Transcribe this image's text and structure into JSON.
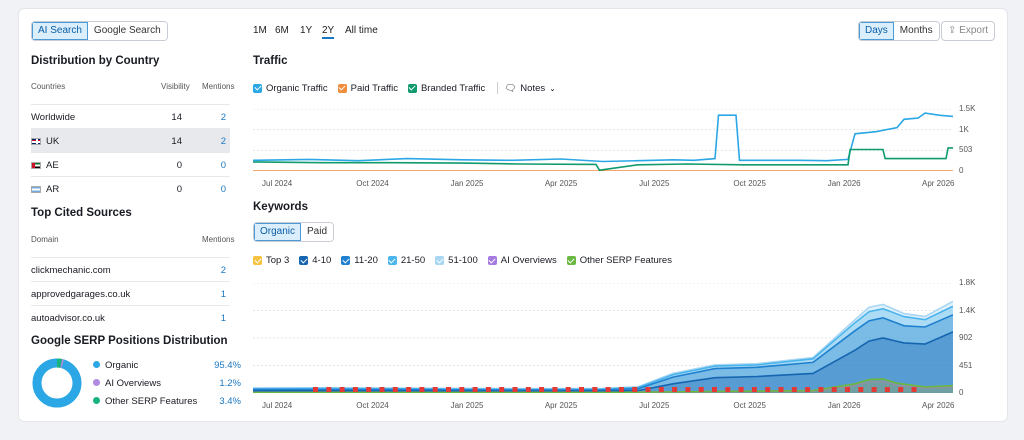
{
  "left": {
    "toggle": [
      {
        "label": "AI Search",
        "active": true
      },
      {
        "label": "Google Search",
        "active": false
      }
    ],
    "country_title": "Distribution by Country",
    "country_headers": {
      "countries": "Countries",
      "visibility": "Visibility",
      "mentions": "Mentions"
    },
    "countries": [
      {
        "name": "Worldwide",
        "visibility": "14",
        "mentions": "2"
      },
      {
        "name": "UK",
        "visibility": "14",
        "mentions": "2",
        "flag": "uk"
      },
      {
        "name": "AE",
        "visibility": "0",
        "mentions": "0",
        "flag": "ae"
      },
      {
        "name": "AR",
        "visibility": "0",
        "mentions": "0",
        "flag": "ar"
      }
    ],
    "sources_title": "Top Cited Sources",
    "sources_headers": {
      "domain": "Domain",
      "mentions": "Mentions"
    },
    "sources": [
      {
        "domain": "clickmechanic.com",
        "mentions": "2"
      },
      {
        "domain": "approvedgarages.co.uk",
        "mentions": "1"
      },
      {
        "domain": "autoadvisor.co.uk",
        "mentions": "1"
      }
    ],
    "serp_title": "Google SERP Positions Distribution",
    "serp": [
      {
        "label": "Organic",
        "value": "95.4%",
        "color": "#2ba7e6"
      },
      {
        "label": "AI Overviews",
        "value": "1.2%",
        "color": "#b08be0"
      },
      {
        "label": "Other SERP Features",
        "value": "3.4%",
        "color": "#19b37f"
      }
    ]
  },
  "periods": [
    {
      "label": "1M",
      "active": false
    },
    {
      "label": "6M",
      "active": false
    },
    {
      "label": "1Y",
      "active": false
    },
    {
      "label": "2Y",
      "active": true
    },
    {
      "label": "All time",
      "active": false
    }
  ],
  "granularity": [
    {
      "label": "Days",
      "active": true
    },
    {
      "label": "Months",
      "active": false
    }
  ],
  "export_label": "Export",
  "traffic": {
    "title": "Traffic",
    "legend": [
      {
        "label": "Organic Traffic",
        "color": "#2ba7e6"
      },
      {
        "label": "Paid Traffic",
        "color": "#f08c3a"
      },
      {
        "label": "Branded Traffic",
        "color": "#0f9b6e"
      }
    ],
    "notes_label": "Notes"
  },
  "keywords": {
    "title": "Keywords",
    "tabs": [
      {
        "label": "Organic",
        "active": true
      },
      {
        "label": "Paid",
        "active": false
      }
    ],
    "legend": [
      {
        "label": "Top 3",
        "color": "#f5c242"
      },
      {
        "label": "4-10",
        "color": "#1565b0"
      },
      {
        "label": "11-20",
        "color": "#1f80cf"
      },
      {
        "label": "21-50",
        "color": "#4ab4ec"
      },
      {
        "label": "51-100",
        "color": "#a8d6f3"
      },
      {
        "label": "AI Overviews",
        "color": "#a57be0"
      },
      {
        "label": "Other SERP Features",
        "color": "#6ab842"
      }
    ]
  },
  "chart_data": [
    {
      "type": "line",
      "x_ticks": [
        "Jul 2024",
        "Oct 2024",
        "Jan 2025",
        "Apr 2025",
        "Jul 2025",
        "Oct 2025",
        "Jan 2026",
        "Apr 2026"
      ],
      "y_ticks": [
        "1.5K",
        "1K",
        "503",
        "0"
      ],
      "ylim": [
        0,
        1500
      ],
      "x_range": [
        0,
        100
      ],
      "series": [
        {
          "name": "Organic Traffic",
          "color": "#2ba7e6",
          "x": [
            0,
            8,
            15,
            22,
            30,
            37,
            44,
            50,
            55,
            60,
            63,
            66,
            66.5,
            69,
            69.5,
            78,
            82,
            85,
            86,
            89,
            92,
            93,
            95,
            96,
            98,
            100
          ],
          "y": [
            260,
            280,
            250,
            300,
            270,
            260,
            290,
            230,
            250,
            270,
            260,
            300,
            1350,
            1350,
            260,
            260,
            250,
            280,
            900,
            950,
            1050,
            1250,
            1280,
            1400,
            1350,
            1320
          ]
        },
        {
          "name": "Paid Traffic",
          "color": "#f08c3a",
          "x": [
            0,
            100
          ],
          "y": [
            0,
            0
          ]
        },
        {
          "name": "Branded Traffic",
          "color": "#0f9b6e",
          "x": [
            0,
            10,
            20,
            30,
            38,
            49,
            49.5,
            55,
            62,
            70,
            80,
            85,
            85.3,
            90,
            90.3,
            99,
            99.3,
            100
          ],
          "y": [
            220,
            200,
            200,
            190,
            170,
            160,
            20,
            150,
            170,
            150,
            150,
            150,
            520,
            520,
            300,
            300,
            560,
            560
          ]
        }
      ]
    },
    {
      "type": "area",
      "x_ticks": [
        "Jul 2024",
        "Oct 2024",
        "Jan 2025",
        "Apr 2025",
        "Jul 2025",
        "Oct 2025",
        "Jan 2026",
        "Apr 2026"
      ],
      "y_ticks": [
        "1.8K",
        "1.4K",
        "902",
        "451",
        "0"
      ],
      "ylim": [
        0,
        1800
      ],
      "x_range": [
        0,
        100
      ],
      "series": [
        {
          "name": "51-100",
          "color": "#a8d6f3",
          "x": [
            0,
            10,
            20,
            30,
            40,
            50,
            55,
            60,
            66,
            72,
            80,
            86,
            88,
            90,
            93,
            96,
            100
          ],
          "y": [
            80,
            85,
            80,
            75,
            70,
            75,
            100,
            320,
            460,
            480,
            580,
            1200,
            1400,
            1450,
            1300,
            1250,
            1500
          ]
        },
        {
          "name": "21-50",
          "color": "#4ab4ec",
          "x": [
            0,
            10,
            20,
            30,
            40,
            50,
            55,
            60,
            66,
            72,
            80,
            86,
            88,
            90,
            93,
            96,
            100
          ],
          "y": [
            70,
            75,
            70,
            65,
            60,
            65,
            90,
            300,
            440,
            460,
            560,
            1150,
            1330,
            1380,
            1250,
            1200,
            1420
          ]
        },
        {
          "name": "11-20",
          "color": "#1f80cf",
          "x": [
            0,
            10,
            20,
            30,
            40,
            50,
            55,
            60,
            66,
            72,
            80,
            86,
            88,
            90,
            93,
            96,
            100
          ],
          "y": [
            55,
            58,
            55,
            50,
            48,
            50,
            70,
            260,
            400,
            420,
            500,
            1020,
            1180,
            1230,
            1100,
            1080,
            1280
          ]
        },
        {
          "name": "4-10",
          "color": "#1565b0",
          "x": [
            0,
            10,
            20,
            30,
            40,
            50,
            55,
            60,
            66,
            72,
            80,
            86,
            88,
            90,
            93,
            96,
            100
          ],
          "y": [
            35,
            38,
            35,
            32,
            30,
            32,
            40,
            150,
            250,
            270,
            320,
            700,
            850,
            900,
            820,
            800,
            1000
          ]
        },
        {
          "name": "AI Overviews",
          "color": "#a57be0",
          "x": [
            0,
            50,
            80,
            86,
            88,
            90,
            92,
            96,
            100
          ],
          "y": [
            10,
            10,
            30,
            120,
            180,
            190,
            130,
            80,
            100
          ]
        },
        {
          "name": "Other SERP Features",
          "color": "#6ab842",
          "x": [
            0,
            50,
            80,
            86,
            88,
            90,
            92,
            96,
            100
          ],
          "y": [
            10,
            10,
            40,
            150,
            220,
            230,
            160,
            100,
            120
          ]
        }
      ]
    }
  ]
}
